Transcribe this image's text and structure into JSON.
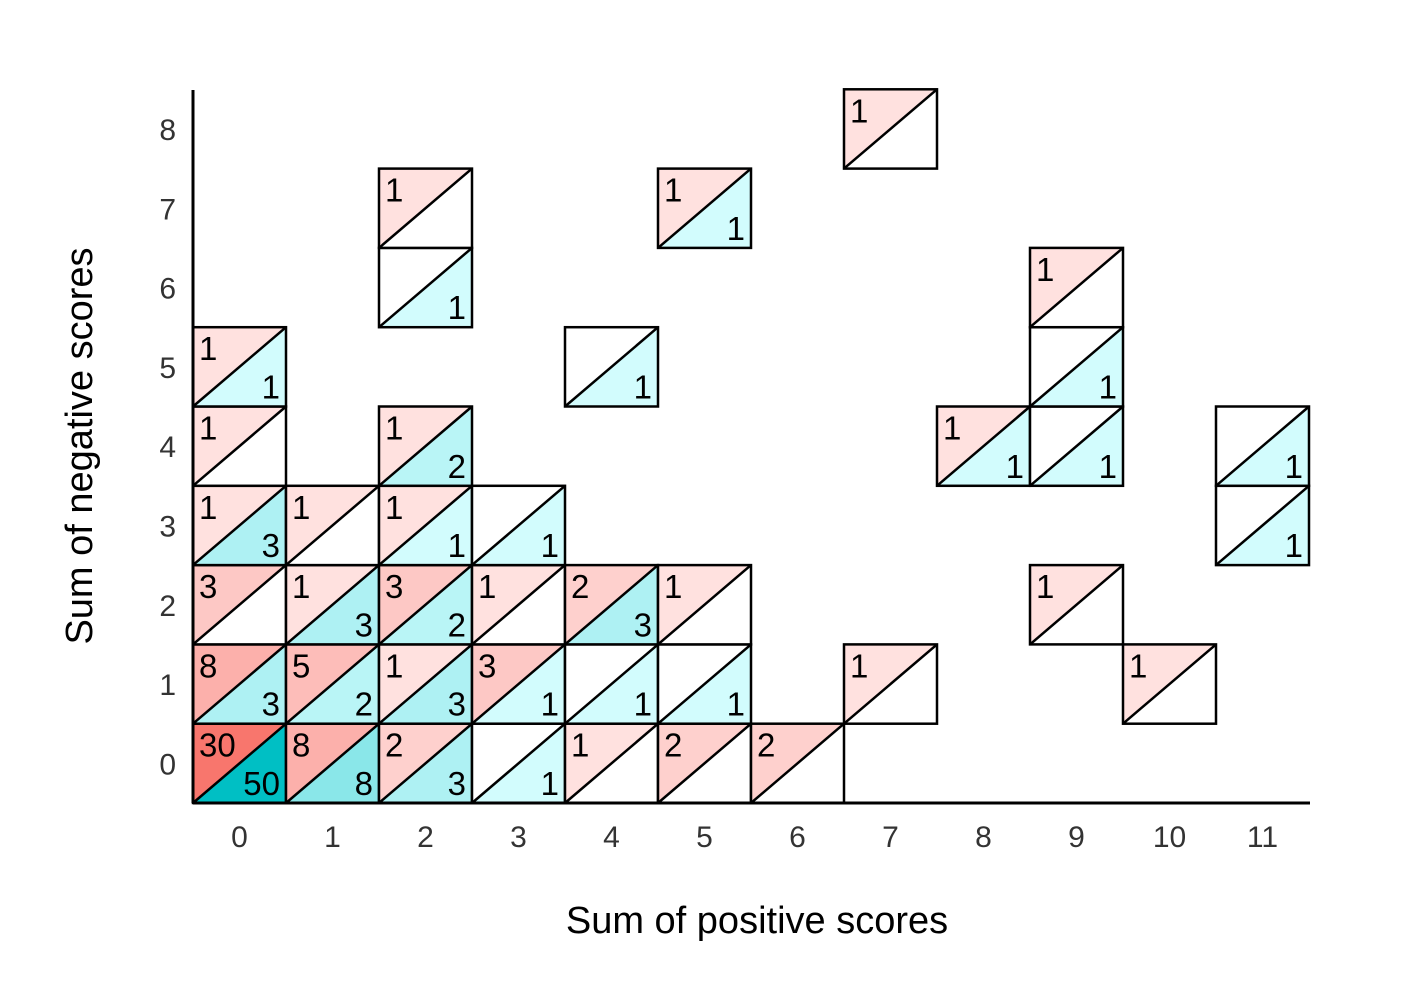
{
  "chart_data": {
    "type": "heatmap",
    "title": "",
    "xlabel": "Sum of positive scores",
    "ylabel": "Sum of negative scores",
    "x_ticks": [
      "0",
      "1",
      "2",
      "3",
      "4",
      "5",
      "6",
      "7",
      "8",
      "9",
      "10",
      "11"
    ],
    "y_ticks": [
      "0",
      "1",
      "2",
      "3",
      "4",
      "5",
      "6",
      "7",
      "8"
    ],
    "xlim": [
      0,
      11
    ],
    "ylim": [
      0,
      8
    ],
    "cell_layout": "each tile split by a diagonal: upper-left triangle = red group count, lower-right triangle = teal group count",
    "series": [
      {
        "key": "red",
        "label_position": "upper-left",
        "color_max": "#f8766d",
        "color_min": "#ffe1df"
      },
      {
        "key": "teal",
        "label_position": "lower-right",
        "color_max": "#00bfc4",
        "color_min": "#d2fcfd"
      }
    ],
    "cells": [
      {
        "x": 0,
        "y": 0,
        "red": 30,
        "teal": 50
      },
      {
        "x": 1,
        "y": 0,
        "red": 8,
        "teal": 8
      },
      {
        "x": 2,
        "y": 0,
        "red": 2,
        "teal": 3
      },
      {
        "x": 3,
        "y": 0,
        "red": 0,
        "teal": 1
      },
      {
        "x": 4,
        "y": 0,
        "red": 1,
        "teal": 0
      },
      {
        "x": 5,
        "y": 0,
        "red": 2,
        "teal": 0
      },
      {
        "x": 6,
        "y": 0,
        "red": 2,
        "teal": 0
      },
      {
        "x": 0,
        "y": 1,
        "red": 8,
        "teal": 3
      },
      {
        "x": 1,
        "y": 1,
        "red": 5,
        "teal": 2
      },
      {
        "x": 2,
        "y": 1,
        "red": 1,
        "teal": 3
      },
      {
        "x": 3,
        "y": 1,
        "red": 3,
        "teal": 1
      },
      {
        "x": 4,
        "y": 1,
        "red": 0,
        "teal": 1
      },
      {
        "x": 5,
        "y": 1,
        "red": 0,
        "teal": 1
      },
      {
        "x": 7,
        "y": 1,
        "red": 1,
        "teal": 0
      },
      {
        "x": 10,
        "y": 1,
        "red": 1,
        "teal": 0
      },
      {
        "x": 0,
        "y": 2,
        "red": 3,
        "teal": 0
      },
      {
        "x": 1,
        "y": 2,
        "red": 1,
        "teal": 3
      },
      {
        "x": 2,
        "y": 2,
        "red": 3,
        "teal": 2
      },
      {
        "x": 3,
        "y": 2,
        "red": 1,
        "teal": 0
      },
      {
        "x": 4,
        "y": 2,
        "red": 2,
        "teal": 3
      },
      {
        "x": 5,
        "y": 2,
        "red": 1,
        "teal": 0
      },
      {
        "x": 9,
        "y": 2,
        "red": 1,
        "teal": 0
      },
      {
        "x": 0,
        "y": 3,
        "red": 1,
        "teal": 3
      },
      {
        "x": 1,
        "y": 3,
        "red": 1,
        "teal": 0
      },
      {
        "x": 2,
        "y": 3,
        "red": 1,
        "teal": 1
      },
      {
        "x": 3,
        "y": 3,
        "red": 0,
        "teal": 1
      },
      {
        "x": 11,
        "y": 3,
        "red": 0,
        "teal": 1
      },
      {
        "x": 0,
        "y": 4,
        "red": 1,
        "teal": 0
      },
      {
        "x": 2,
        "y": 4,
        "red": 1,
        "teal": 2
      },
      {
        "x": 8,
        "y": 4,
        "red": 1,
        "teal": 1
      },
      {
        "x": 9,
        "y": 4,
        "red": 0,
        "teal": 1
      },
      {
        "x": 11,
        "y": 4,
        "red": 0,
        "teal": 1
      },
      {
        "x": 0,
        "y": 5,
        "red": 1,
        "teal": 1
      },
      {
        "x": 4,
        "y": 5,
        "red": 0,
        "teal": 1
      },
      {
        "x": 9,
        "y": 5,
        "red": 0,
        "teal": 1
      },
      {
        "x": 2,
        "y": 6,
        "red": 0,
        "teal": 1
      },
      {
        "x": 9,
        "y": 6,
        "red": 1,
        "teal": 0
      },
      {
        "x": 2,
        "y": 7,
        "red": 1,
        "teal": 0
      },
      {
        "x": 5,
        "y": 7,
        "red": 1,
        "teal": 1
      },
      {
        "x": 7,
        "y": 8,
        "red": 1,
        "teal": 0
      }
    ]
  }
}
